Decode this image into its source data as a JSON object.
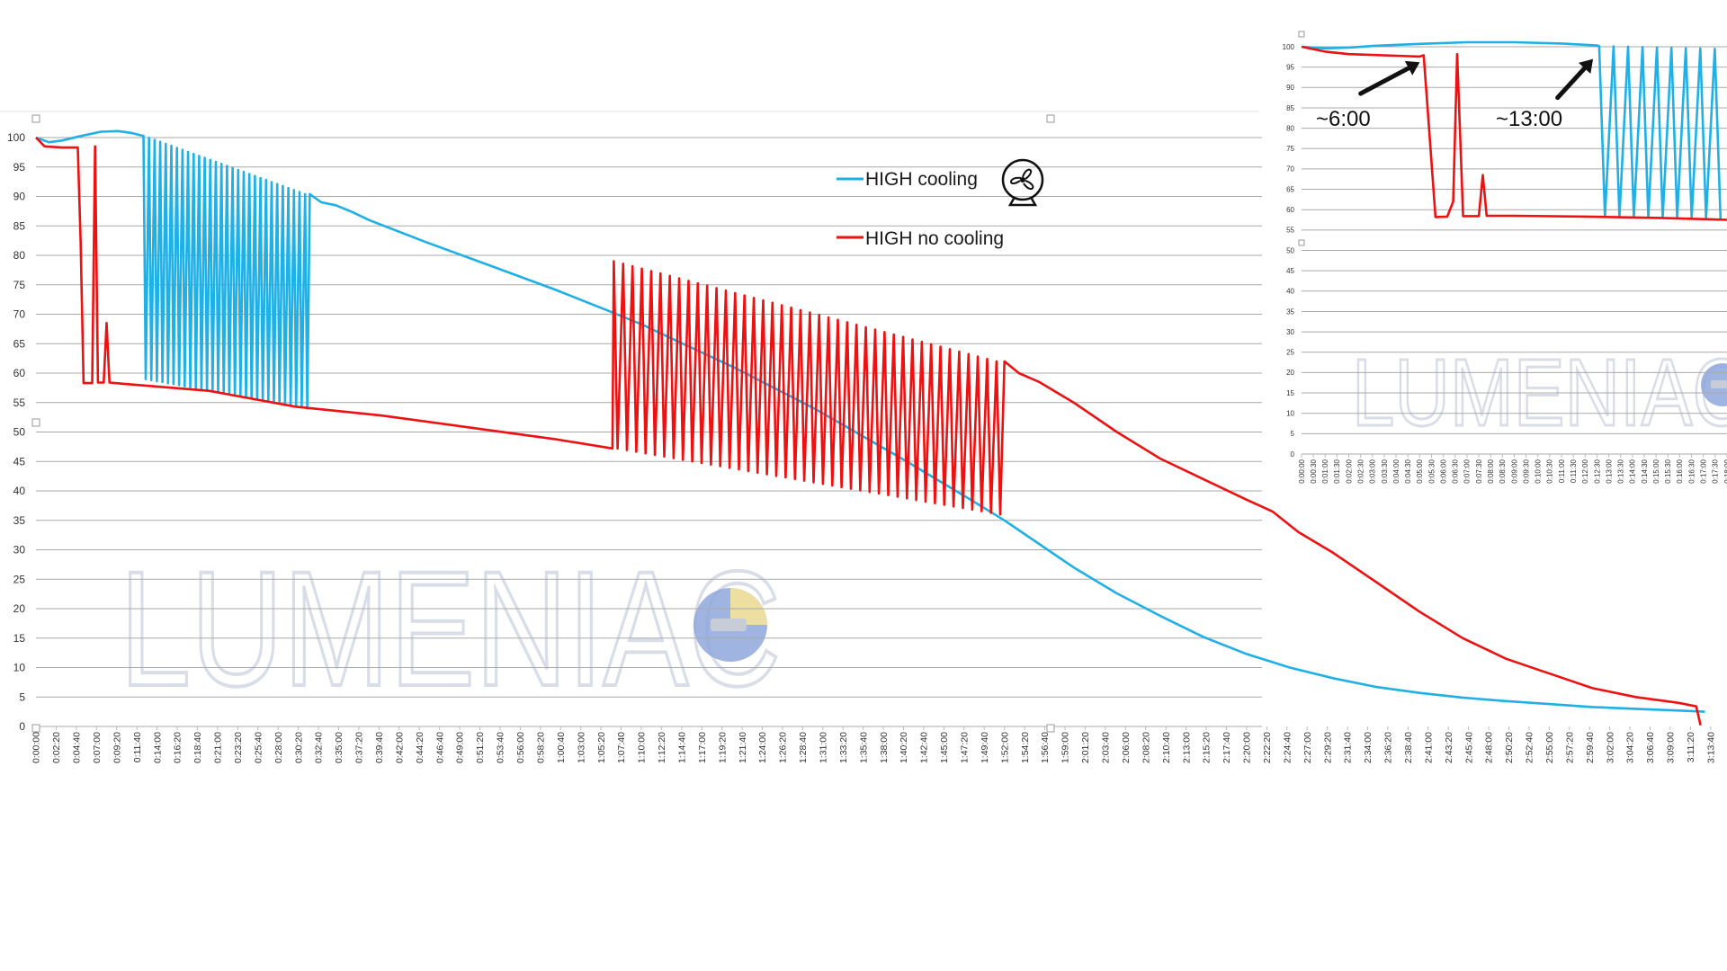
{
  "colors": {
    "cooling": "#1fb0e6",
    "no_cooling": "#ee1111",
    "grid": "#a9a9a9",
    "axis_text": "#333333",
    "watermark": "#dfe3eb"
  },
  "watermark": {
    "text": "LUMENIAC"
  },
  "icons": {
    "legend_fan": "fan-icon",
    "arrow": "arrow-icon"
  },
  "chart_data": [
    {
      "type": "line",
      "ylim": [
        0,
        100
      ],
      "yticks": [
        0,
        5,
        10,
        15,
        20,
        25,
        30,
        35,
        40,
        45,
        50,
        55,
        60,
        65,
        70,
        75,
        80,
        85,
        90,
        95,
        100
      ],
      "x_unit": "h:mm:ss",
      "xlim": [
        "0:00:00",
        "3:14:00"
      ],
      "x_tick_interval_s": 140,
      "legend": {
        "placement": "top-center"
      },
      "series": [
        {
          "name": "HIGH cooling",
          "color": "#1fb0e6",
          "points": [
            [
              "0:00:00",
              100
            ],
            [
              "0:01:30",
              99.2
            ],
            [
              "0:03:00",
              99.5
            ],
            [
              "0:05:00",
              100.2
            ],
            [
              "0:07:30",
              101
            ],
            [
              "0:09:30",
              101.1
            ],
            [
              "0:11:00",
              100.8
            ],
            [
              "0:12:20",
              100.3
            ]
          ],
          "oscillation": {
            "x_start": "0:12:20",
            "x_end": "0:31:40",
            "cycles": 30,
            "upper_start": 100.3,
            "upper_end": 90.4,
            "lower_start": 59,
            "lower_end": 54
          },
          "tail": [
            [
              "0:31:40",
              90.4
            ],
            [
              "0:33:00",
              89
            ],
            [
              "0:34:40",
              88.5
            ],
            [
              "0:36:40",
              87.3
            ],
            [
              "0:38:30",
              86
            ],
            [
              "0:45:00",
              82.3
            ],
            [
              "0:53:00",
              78
            ],
            [
              "1:00:00",
              74.2
            ],
            [
              "1:06:00",
              70.7
            ],
            [
              "1:10:00",
              68.3
            ],
            [
              "1:13:20",
              66
            ],
            [
              "1:20:40",
              61
            ],
            [
              "1:30:00",
              54
            ],
            [
              "1:40:00",
              45.6
            ],
            [
              "1:48:00",
              38.6
            ],
            [
              "1:52:00",
              35
            ],
            [
              "1:56:00",
              31
            ],
            [
              "2:00:00",
              27
            ],
            [
              "2:05:00",
              22.6
            ],
            [
              "2:10:00",
              18.8
            ],
            [
              "2:15:00",
              15.2
            ],
            [
              "2:20:00",
              12.3
            ],
            [
              "2:25:00",
              10
            ],
            [
              "2:30:00",
              8.2
            ],
            [
              "2:35:00",
              6.7
            ],
            [
              "2:40:00",
              5.7
            ],
            [
              "2:45:00",
              4.9
            ],
            [
              "2:50:00",
              4.3
            ],
            [
              "2:55:00",
              3.8
            ],
            [
              "3:00:00",
              3.3
            ],
            [
              "3:05:00",
              3
            ],
            [
              "3:10:00",
              2.7
            ],
            [
              "3:13:00",
              2.5
            ]
          ]
        },
        {
          "name": "HIGH no cooling",
          "color": "#ee1111",
          "points": [
            [
              "0:00:00",
              100
            ],
            [
              "0:01:00",
              98.5
            ],
            [
              "0:03:00",
              98.3
            ],
            [
              "0:04:50",
              98.3
            ],
            [
              "0:05:10",
              82
            ],
            [
              "0:05:30",
              58.3
            ],
            [
              "0:06:30",
              58.3
            ],
            [
              "0:06:50",
              98.5
            ],
            [
              "0:07:10",
              58.4
            ],
            [
              "0:07:50",
              58.4
            ],
            [
              "0:08:10",
              68.5
            ],
            [
              "0:08:30",
              58.4
            ],
            [
              "0:10:00",
              58.2
            ],
            [
              "0:20:00",
              57
            ],
            [
              "0:30:00",
              54.3
            ],
            [
              "0:40:00",
              52.8
            ],
            [
              "0:50:00",
              50.8
            ],
            [
              "1:00:00",
              48.8
            ],
            [
              "1:06:40",
              47.2
            ]
          ],
          "oscillation": {
            "x_start": "1:06:40",
            "x_end": "1:52:00",
            "cycles": 42,
            "upper_start": 79,
            "upper_end": 62,
            "lower_start": 47.2,
            "lower_end": 36
          },
          "tail": [
            [
              "1:52:00",
              62
            ],
            [
              "1:53:40",
              60
            ],
            [
              "1:56:00",
              58.5
            ],
            [
              "2:00:00",
              55
            ],
            [
              "2:05:00",
              50
            ],
            [
              "2:10:00",
              45.5
            ],
            [
              "2:15:00",
              42
            ],
            [
              "2:20:00",
              38.5
            ],
            [
              "2:23:00",
              36.5
            ],
            [
              "2:26:00",
              33
            ],
            [
              "2:30:00",
              29.5
            ],
            [
              "2:35:00",
              24.5
            ],
            [
              "2:40:00",
              19.5
            ],
            [
              "2:45:00",
              15
            ],
            [
              "2:50:00",
              11.5
            ],
            [
              "2:54:00",
              9.5
            ],
            [
              "2:56:00",
              8.5
            ],
            [
              "3:00:00",
              6.5
            ],
            [
              "3:05:00",
              5
            ],
            [
              "3:10:00",
              4
            ],
            [
              "3:12:00",
              3.4
            ],
            [
              "3:12:30",
              0.2
            ]
          ]
        }
      ]
    },
    {
      "type": "line",
      "ylim": [
        0,
        100
      ],
      "yticks": [
        0,
        5,
        10,
        15,
        20,
        25,
        30,
        35,
        40,
        45,
        50,
        55,
        60,
        65,
        70,
        75,
        80,
        85,
        90,
        95,
        100
      ],
      "x_unit": "h:mm:ss",
      "xlim": [
        "0:00:00",
        "0:18:00"
      ],
      "x_tick_interval_s": 30,
      "annotations": [
        {
          "label": "~6:00",
          "arrow_from": [
            "0:02:30",
            88.5
          ],
          "arrow_to": [
            "0:05:00",
            96.2
          ]
        },
        {
          "label": "~13:00",
          "arrow_from": [
            "0:10:50",
            87.5
          ],
          "arrow_to": [
            "0:12:20",
            97
          ]
        }
      ],
      "series": [
        {
          "name": "HIGH cooling",
          "color": "#1fb0e6",
          "points": [
            [
              "0:00:00",
              100
            ],
            [
              "0:01:00",
              99.6
            ],
            [
              "0:02:00",
              99.8
            ],
            [
              "0:03:00",
              100.2
            ],
            [
              "0:05:00",
              100.7
            ],
            [
              "0:07:00",
              101.1
            ],
            [
              "0:09:00",
              101.1
            ],
            [
              "0:11:00",
              100.8
            ],
            [
              "0:12:30",
              100.3
            ]
          ],
          "oscillation": {
            "x_start": "0:12:30",
            "x_end": "0:18:00",
            "cycles": 9,
            "upper_start": 100.2,
            "upper_end": 99.5,
            "lower_start": 58.3,
            "lower_end": 57.8
          }
        },
        {
          "name": "HIGH no cooling",
          "color": "#ee1111",
          "points": [
            [
              "0:00:00",
              100
            ],
            [
              "0:01:00",
              98.8
            ],
            [
              "0:02:00",
              98.2
            ],
            [
              "0:03:00",
              98
            ],
            [
              "0:04:00",
              97.8
            ],
            [
              "0:05:00",
              97.6
            ],
            [
              "0:05:10",
              97.9
            ],
            [
              "0:05:20",
              85
            ],
            [
              "0:05:40",
              58.2
            ],
            [
              "0:06:10",
              58.3
            ],
            [
              "0:06:25",
              62
            ],
            [
              "0:06:35",
              98.2
            ],
            [
              "0:06:50",
              58.4
            ],
            [
              "0:07:30",
              58.4
            ],
            [
              "0:07:40",
              68.5
            ],
            [
              "0:07:50",
              58.5
            ],
            [
              "0:09:00",
              58.5
            ],
            [
              "0:12:00",
              58.3
            ],
            [
              "0:15:00",
              58
            ],
            [
              "0:18:00",
              57.5
            ]
          ]
        }
      ]
    }
  ]
}
